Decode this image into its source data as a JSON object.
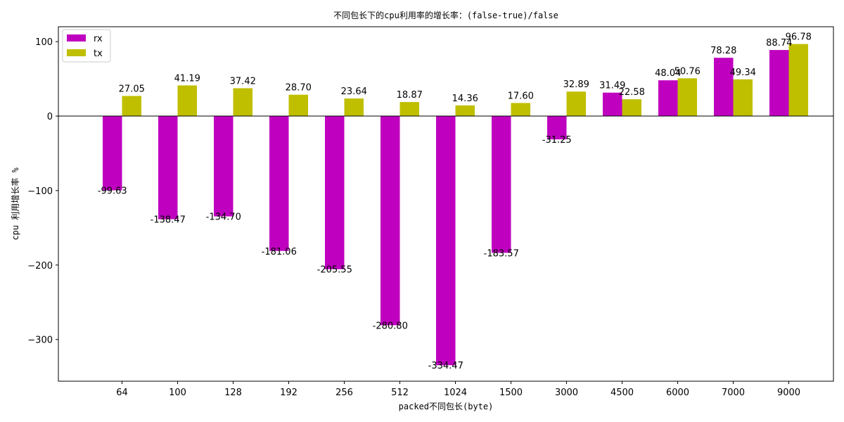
{
  "chart_data": {
    "type": "bar",
    "title": "不同包长下的cpu利用率的增长率：(false-true)/false",
    "xlabel": "packed不同包长(byte)",
    "ylabel": "cpu 利用增长率 %",
    "categories": [
      "64",
      "100",
      "128",
      "192",
      "256",
      "512",
      "1024",
      "1500",
      "3000",
      "4500",
      "6000",
      "7000",
      "9000"
    ],
    "series": [
      {
        "name": "rx",
        "color": "#bf00bf",
        "values": [
          -99.63,
          -138.47,
          -134.7,
          -181.06,
          -205.55,
          -280.8,
          -334.47,
          -183.57,
          -31.25,
          31.49,
          48.04,
          78.28,
          88.74
        ],
        "labels": [
          "-99.63",
          "-138.47",
          "-134.70",
          "-181.06",
          "-205.55",
          "-280.80",
          "-334.47",
          "-183.57",
          "-31.25",
          "31.49",
          "48.04",
          "78.28",
          "88.74"
        ]
      },
      {
        "name": "tx",
        "color": "#bfbf00",
        "values": [
          27.05,
          41.19,
          37.42,
          28.7,
          23.64,
          18.87,
          14.36,
          17.6,
          32.89,
          22.58,
          50.76,
          49.34,
          96.78
        ],
        "labels": [
          "27.05",
          "41.19",
          "37.42",
          "28.70",
          "23.64",
          "18.87",
          "14.36",
          "17.60",
          "32.89",
          "22.58",
          "50.76",
          "49.34",
          "96.78"
        ]
      }
    ],
    "ylim": [
      -356,
      120
    ],
    "yticks": [
      100,
      0,
      -100,
      -200,
      -300
    ],
    "ytick_labels": [
      "100",
      "0",
      "−100",
      "−200",
      "−300"
    ],
    "legend": "top-left",
    "zero_line": true,
    "grid": false
  }
}
